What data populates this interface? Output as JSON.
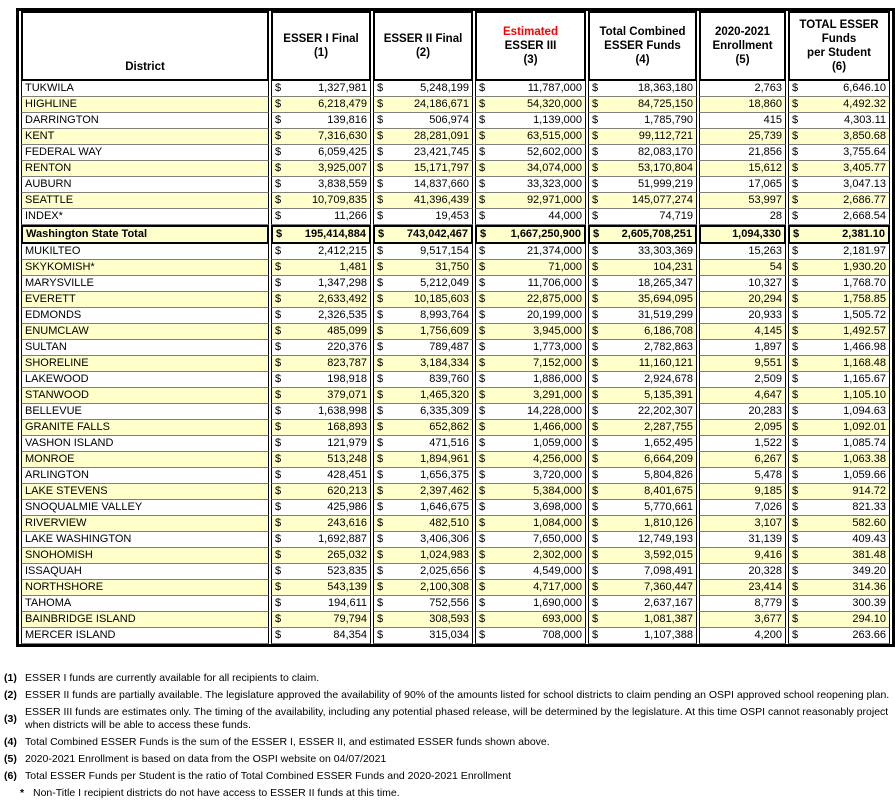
{
  "currency_symbol": "$",
  "colors": {
    "shaded_row": "#FFFFCC",
    "estimated_red": "#FF0000",
    "grid_line": "#7f7f7f",
    "border": "#000000"
  },
  "table": {
    "columns": [
      {
        "type": "district",
        "lines": [
          {
            "text": "District",
            "red": false
          }
        ]
      },
      {
        "type": "money",
        "lines": [
          {
            "text": "ESSER I Final",
            "red": false
          },
          {
            "text": "(1)",
            "red": false
          }
        ]
      },
      {
        "type": "money",
        "lines": [
          {
            "text": "ESSER II Final",
            "red": false
          },
          {
            "text": "(2)",
            "red": false
          }
        ]
      },
      {
        "type": "money",
        "lines": [
          {
            "text": "Estimated",
            "red": true
          },
          {
            "text": "ESSER III",
            "red": false
          },
          {
            "text": "(3)",
            "red": false
          }
        ]
      },
      {
        "type": "money",
        "lines": [
          {
            "text": "Total Combined",
            "red": false
          },
          {
            "text": "ESSER Funds",
            "red": false
          },
          {
            "text": "(4)",
            "red": false
          }
        ]
      },
      {
        "type": "count",
        "lines": [
          {
            "text": "2020-2021",
            "red": false
          },
          {
            "text": "Enrollment",
            "red": false
          },
          {
            "text": "(5)",
            "red": false
          }
        ]
      },
      {
        "type": "money",
        "lines": [
          {
            "text": "TOTAL ESSER",
            "red": false
          },
          {
            "text": "Funds",
            "red": false
          },
          {
            "text": "per Student",
            "red": false
          },
          {
            "text": "(6)",
            "red": false
          }
        ]
      }
    ],
    "rows": [
      {
        "district": "TUKWILA",
        "esser1": "1,327,981",
        "esser2": "5,248,199",
        "esser3": "11,787,000",
        "total": "18,363,180",
        "enrollment": "2,763",
        "per_student": "6,646.10",
        "shaded": false,
        "is_total": false
      },
      {
        "district": "HIGHLINE",
        "esser1": "6,218,479",
        "esser2": "24,186,671",
        "esser3": "54,320,000",
        "total": "84,725,150",
        "enrollment": "18,860",
        "per_student": "4,492.32",
        "shaded": true,
        "is_total": false
      },
      {
        "district": "DARRINGTON",
        "esser1": "139,816",
        "esser2": "506,974",
        "esser3": "1,139,000",
        "total": "1,785,790",
        "enrollment": "415",
        "per_student": "4,303.11",
        "shaded": false,
        "is_total": false
      },
      {
        "district": "KENT",
        "esser1": "7,316,630",
        "esser2": "28,281,091",
        "esser3": "63,515,000",
        "total": "99,112,721",
        "enrollment": "25,739",
        "per_student": "3,850.68",
        "shaded": true,
        "is_total": false
      },
      {
        "district": "FEDERAL WAY",
        "esser1": "6,059,425",
        "esser2": "23,421,745",
        "esser3": "52,602,000",
        "total": "82,083,170",
        "enrollment": "21,856",
        "per_student": "3,755.64",
        "shaded": false,
        "is_total": false
      },
      {
        "district": "RENTON",
        "esser1": "3,925,007",
        "esser2": "15,171,797",
        "esser3": "34,074,000",
        "total": "53,170,804",
        "enrollment": "15,612",
        "per_student": "3,405.77",
        "shaded": true,
        "is_total": false
      },
      {
        "district": "AUBURN",
        "esser1": "3,838,559",
        "esser2": "14,837,660",
        "esser3": "33,323,000",
        "total": "51,999,219",
        "enrollment": "17,065",
        "per_student": "3,047.13",
        "shaded": false,
        "is_total": false
      },
      {
        "district": "SEATTLE",
        "esser1": "10,709,835",
        "esser2": "41,396,439",
        "esser3": "92,971,000",
        "total": "145,077,274",
        "enrollment": "53,997",
        "per_student": "2,686.77",
        "shaded": true,
        "is_total": false
      },
      {
        "district": "INDEX*",
        "esser1": "11,266",
        "esser2": "19,453",
        "esser3": "44,000",
        "total": "74,719",
        "enrollment": "28",
        "per_student": "2,668.54",
        "shaded": false,
        "is_total": false
      },
      {
        "district": "Washington State Total",
        "esser1": "195,414,884",
        "esser2": "743,042,467",
        "esser3": "1,667,250,900",
        "total": "2,605,708,251",
        "enrollment": "1,094,330",
        "per_student": "2,381.10",
        "shaded": true,
        "is_total": true
      },
      {
        "district": "MUKILTEO",
        "esser1": "2,412,215",
        "esser2": "9,517,154",
        "esser3": "21,374,000",
        "total": "33,303,369",
        "enrollment": "15,263",
        "per_student": "2,181.97",
        "shaded": false,
        "is_total": false
      },
      {
        "district": "SKYKOMISH*",
        "esser1": "1,481",
        "esser2": "31,750",
        "esser3": "71,000",
        "total": "104,231",
        "enrollment": "54",
        "per_student": "1,930.20",
        "shaded": true,
        "is_total": false
      },
      {
        "district": "MARYSVILLE",
        "esser1": "1,347,298",
        "esser2": "5,212,049",
        "esser3": "11,706,000",
        "total": "18,265,347",
        "enrollment": "10,327",
        "per_student": "1,768.70",
        "shaded": false,
        "is_total": false
      },
      {
        "district": "EVERETT",
        "esser1": "2,633,492",
        "esser2": "10,185,603",
        "esser3": "22,875,000",
        "total": "35,694,095",
        "enrollment": "20,294",
        "per_student": "1,758.85",
        "shaded": true,
        "is_total": false
      },
      {
        "district": "EDMONDS",
        "esser1": "2,326,535",
        "esser2": "8,993,764",
        "esser3": "20,199,000",
        "total": "31,519,299",
        "enrollment": "20,933",
        "per_student": "1,505.72",
        "shaded": false,
        "is_total": false
      },
      {
        "district": "ENUMCLAW",
        "esser1": "485,099",
        "esser2": "1,756,609",
        "esser3": "3,945,000",
        "total": "6,186,708",
        "enrollment": "4,145",
        "per_student": "1,492.57",
        "shaded": true,
        "is_total": false
      },
      {
        "district": "SULTAN",
        "esser1": "220,376",
        "esser2": "789,487",
        "esser3": "1,773,000",
        "total": "2,782,863",
        "enrollment": "1,897",
        "per_student": "1,466.98",
        "shaded": false,
        "is_total": false
      },
      {
        "district": "SHORELINE",
        "esser1": "823,787",
        "esser2": "3,184,334",
        "esser3": "7,152,000",
        "total": "11,160,121",
        "enrollment": "9,551",
        "per_student": "1,168.48",
        "shaded": true,
        "is_total": false
      },
      {
        "district": "LAKEWOOD",
        "esser1": "198,918",
        "esser2": "839,760",
        "esser3": "1,886,000",
        "total": "2,924,678",
        "enrollment": "2,509",
        "per_student": "1,165.67",
        "shaded": false,
        "is_total": false
      },
      {
        "district": "STANWOOD",
        "esser1": "379,071",
        "esser2": "1,465,320",
        "esser3": "3,291,000",
        "total": "5,135,391",
        "enrollment": "4,647",
        "per_student": "1,105.10",
        "shaded": true,
        "is_total": false
      },
      {
        "district": "BELLEVUE",
        "esser1": "1,638,998",
        "esser2": "6,335,309",
        "esser3": "14,228,000",
        "total": "22,202,307",
        "enrollment": "20,283",
        "per_student": "1,094.63",
        "shaded": false,
        "is_total": false
      },
      {
        "district": "GRANITE FALLS",
        "esser1": "168,893",
        "esser2": "652,862",
        "esser3": "1,466,000",
        "total": "2,287,755",
        "enrollment": "2,095",
        "per_student": "1,092.01",
        "shaded": true,
        "is_total": false
      },
      {
        "district": "VASHON ISLAND",
        "esser1": "121,979",
        "esser2": "471,516",
        "esser3": "1,059,000",
        "total": "1,652,495",
        "enrollment": "1,522",
        "per_student": "1,085.74",
        "shaded": false,
        "is_total": false
      },
      {
        "district": "MONROE",
        "esser1": "513,248",
        "esser2": "1,894,961",
        "esser3": "4,256,000",
        "total": "6,664,209",
        "enrollment": "6,267",
        "per_student": "1,063.38",
        "shaded": true,
        "is_total": false
      },
      {
        "district": "ARLINGTON",
        "esser1": "428,451",
        "esser2": "1,656,375",
        "esser3": "3,720,000",
        "total": "5,804,826",
        "enrollment": "5,478",
        "per_student": "1,059.66",
        "shaded": false,
        "is_total": false
      },
      {
        "district": "LAKE STEVENS",
        "esser1": "620,213",
        "esser2": "2,397,462",
        "esser3": "5,384,000",
        "total": "8,401,675",
        "enrollment": "9,185",
        "per_student": "914.72",
        "shaded": true,
        "is_total": false
      },
      {
        "district": "SNOQUALMIE VALLEY",
        "esser1": "425,986",
        "esser2": "1,646,675",
        "esser3": "3,698,000",
        "total": "5,770,661",
        "enrollment": "7,026",
        "per_student": "821.33",
        "shaded": false,
        "is_total": false
      },
      {
        "district": "RIVERVIEW",
        "esser1": "243,616",
        "esser2": "482,510",
        "esser3": "1,084,000",
        "total": "1,810,126",
        "enrollment": "3,107",
        "per_student": "582.60",
        "shaded": true,
        "is_total": false
      },
      {
        "district": "LAKE WASHINGTON",
        "esser1": "1,692,887",
        "esser2": "3,406,306",
        "esser3": "7,650,000",
        "total": "12,749,193",
        "enrollment": "31,139",
        "per_student": "409.43",
        "shaded": false,
        "is_total": false
      },
      {
        "district": "SNOHOMISH",
        "esser1": "265,032",
        "esser2": "1,024,983",
        "esser3": "2,302,000",
        "total": "3,592,015",
        "enrollment": "9,416",
        "per_student": "381.48",
        "shaded": true,
        "is_total": false
      },
      {
        "district": "ISSAQUAH",
        "esser1": "523,835",
        "esser2": "2,025,656",
        "esser3": "4,549,000",
        "total": "7,098,491",
        "enrollment": "20,328",
        "per_student": "349.20",
        "shaded": false,
        "is_total": false
      },
      {
        "district": "NORTHSHORE",
        "esser1": "543,139",
        "esser2": "2,100,308",
        "esser3": "4,717,000",
        "total": "7,360,447",
        "enrollment": "23,414",
        "per_student": "314.36",
        "shaded": true,
        "is_total": false
      },
      {
        "district": "TAHOMA",
        "esser1": "194,611",
        "esser2": "752,556",
        "esser3": "1,690,000",
        "total": "2,637,167",
        "enrollment": "8,779",
        "per_student": "300.39",
        "shaded": false,
        "is_total": false
      },
      {
        "district": "BAINBRIDGE ISLAND",
        "esser1": "79,794",
        "esser2": "308,593",
        "esser3": "693,000",
        "total": "1,081,387",
        "enrollment": "3,677",
        "per_student": "294.10",
        "shaded": true,
        "is_total": false
      },
      {
        "district": "MERCER ISLAND",
        "esser1": "84,354",
        "esser2": "315,034",
        "esser3": "708,000",
        "total": "1,107,388",
        "enrollment": "4,200",
        "per_student": "263.66",
        "shaded": false,
        "is_total": false
      }
    ]
  },
  "footnotes": [
    {
      "label": "(1)",
      "text": "ESSER I funds are currently available for all recipients to claim.",
      "star": false
    },
    {
      "label": "(2)",
      "text": "ESSER II funds are partially available. The legislature approved the availability of 90% of the amounts listed for school districts to claim pending an OSPI approved school reopening plan.",
      "star": false
    },
    {
      "label": "(3)",
      "text": "ESSER III funds are estimates only. The timing of the availability, including any potential phased release, will be determined by the legislature. At this time OSPI cannot reasonably project when districts will be able to access these funds.",
      "star": false
    },
    {
      "label": "(4)",
      "text": "Total Combined ESSER Funds is the sum of the ESSER I, ESSER II, and estimated ESSER funds shown above.",
      "star": false
    },
    {
      "label": "(5)",
      "text": "2020-2021 Enrollment is based on data from the OSPI website on 04/07/2021",
      "star": false
    },
    {
      "label": "(6)",
      "text": "Total ESSER Funds per Student is the ratio of Total Combined ESSER Funds and 2020-2021 Enrollment",
      "star": false
    },
    {
      "label": "*",
      "text": "Non-Title I recipient districts do not have access to ESSER II funds at this time.",
      "star": true
    }
  ]
}
